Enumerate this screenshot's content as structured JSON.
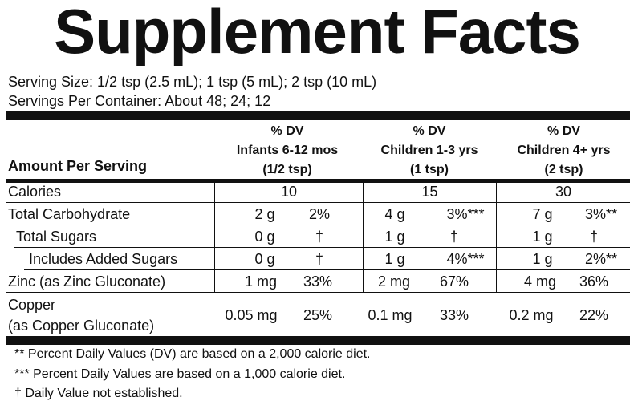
{
  "title": "Supplement Facts",
  "serving_size": "Serving Size: 1/2 tsp (2.5 mL); 1 tsp (5 mL); 2 tsp (10 mL)",
  "servings_per_container": "Servings Per Container: About 48; 24; 12",
  "header": {
    "amount_per_serving": "Amount Per Serving",
    "columns": [
      {
        "dv": "% DV",
        "group": "Infants 6-12 mos",
        "dose": "(1/2 tsp)"
      },
      {
        "dv": "% DV",
        "group": "Children 1-3 yrs",
        "dose": "(1 tsp)"
      },
      {
        "dv": "% DV",
        "group": "Children 4+ yrs",
        "dose": "(2 tsp)"
      }
    ]
  },
  "rows": [
    {
      "label": "Calories",
      "cols": [
        {
          "amount": "10"
        },
        {
          "amount": "15"
        },
        {
          "amount": "30"
        }
      ]
    },
    {
      "label": "Total Carbohydrate",
      "cols": [
        {
          "amount": "2 g",
          "dv": "2%"
        },
        {
          "amount": "4 g",
          "dv": "3%***"
        },
        {
          "amount": "7 g",
          "dv": "3%**"
        }
      ]
    },
    {
      "label": "Total Sugars",
      "cols": [
        {
          "amount": "0 g",
          "dv": "†"
        },
        {
          "amount": "1 g",
          "dv": "†"
        },
        {
          "amount": "1 g",
          "dv": "†"
        }
      ]
    },
    {
      "label": "Includes Added Sugars",
      "cols": [
        {
          "amount": "0 g",
          "dv": "†"
        },
        {
          "amount": "1 g",
          "dv": "4%***"
        },
        {
          "amount": "1 g",
          "dv": "2%**"
        }
      ]
    },
    {
      "label": "Zinc (as Zinc Gluconate)",
      "cols": [
        {
          "amount": "1 mg",
          "dv": "33%"
        },
        {
          "amount": "2 mg",
          "dv": "67%"
        },
        {
          "amount": "4 mg",
          "dv": "36%"
        }
      ]
    },
    {
      "label": "Copper",
      "label2": "(as Copper Gluconate)",
      "cols": [
        {
          "amount": "0.05 mg",
          "dv": "25%"
        },
        {
          "amount": "0.1 mg",
          "dv": "33%"
        },
        {
          "amount": "0.2 mg",
          "dv": "22%"
        }
      ]
    }
  ],
  "footnotes": [
    "** Percent Daily Values (DV) are based on a 2,000 calorie diet.",
    "*** Percent Daily Values are based on a 1,000 calorie diet.",
    "† Daily Value not established."
  ]
}
